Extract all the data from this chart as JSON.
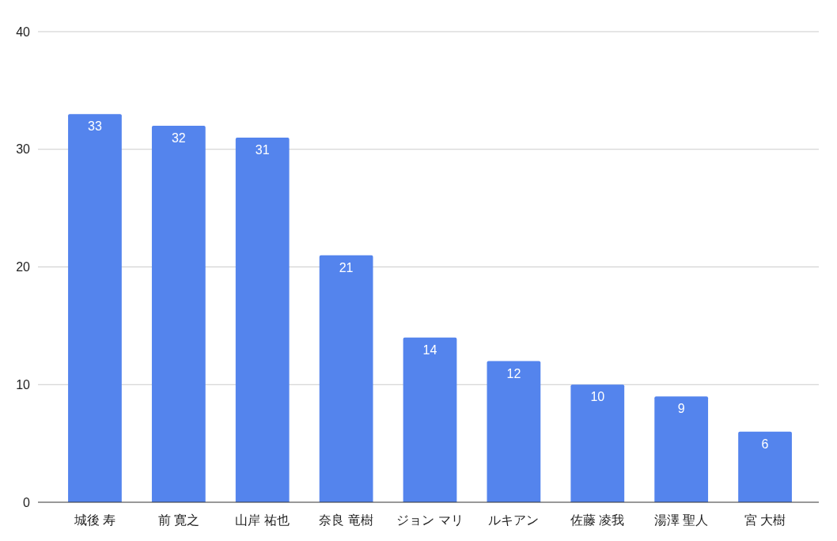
{
  "chart_data": {
    "type": "bar",
    "categories": [
      "城後 寿",
      "前 寛之",
      "山岸 祐也",
      "奈良 竜樹",
      "ジョン マリ",
      "ルキアン",
      "佐藤 凌我",
      "湯澤 聖人",
      "宮 大樹"
    ],
    "values": [
      33,
      32,
      31,
      21,
      14,
      12,
      10,
      9,
      6
    ],
    "color": "#5484ed",
    "ylim": [
      0,
      40
    ],
    "yticks": [
      0,
      10,
      20,
      30,
      40
    ],
    "grid": true,
    "data_labels": true
  }
}
